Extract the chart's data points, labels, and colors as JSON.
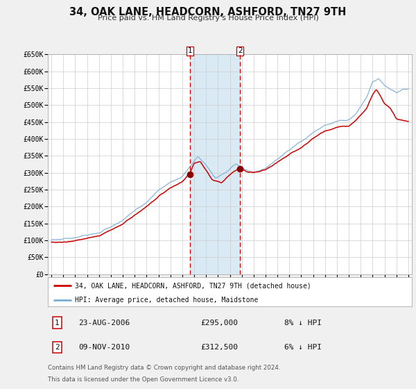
{
  "title": "34, OAK LANE, HEADCORN, ASHFORD, TN27 9TH",
  "subtitle": "Price paid vs. HM Land Registry's House Price Index (HPI)",
  "ylim": [
    0,
    650000
  ],
  "yticks": [
    0,
    50000,
    100000,
    150000,
    200000,
    250000,
    300000,
    350000,
    400000,
    450000,
    500000,
    550000,
    600000,
    650000
  ],
  "ytick_labels": [
    "£0",
    "£50K",
    "£100K",
    "£150K",
    "£200K",
    "£250K",
    "£300K",
    "£350K",
    "£400K",
    "£450K",
    "£500K",
    "£550K",
    "£600K",
    "£650K"
  ],
  "xlim_start": 1994.7,
  "xlim_end": 2025.3,
  "xtick_years": [
    1995,
    1996,
    1997,
    1998,
    1999,
    2000,
    2001,
    2002,
    2003,
    2004,
    2005,
    2006,
    2007,
    2008,
    2009,
    2010,
    2011,
    2012,
    2013,
    2014,
    2015,
    2016,
    2017,
    2018,
    2019,
    2020,
    2021,
    2022,
    2023,
    2024,
    2025
  ],
  "red_line_color": "#cc0000",
  "blue_line_color": "#7aadd4",
  "shaded_region_color": "#daeaf5",
  "vline_color": "#cc0000",
  "marker1_x": 2006.64,
  "marker1_y": 295000,
  "marker2_x": 2010.86,
  "marker2_y": 312500,
  "legend_label1": "34, OAK LANE, HEADCORN, ASHFORD, TN27 9TH (detached house)",
  "legend_label2": "HPI: Average price, detached house, Maidstone",
  "footnote1": "Contains HM Land Registry data © Crown copyright and database right 2024.",
  "footnote2": "This data is licensed under the Open Government Licence v3.0.",
  "background_color": "#f0f0f0",
  "plot_bg_color": "#ffffff",
  "grid_color": "#cccccc"
}
